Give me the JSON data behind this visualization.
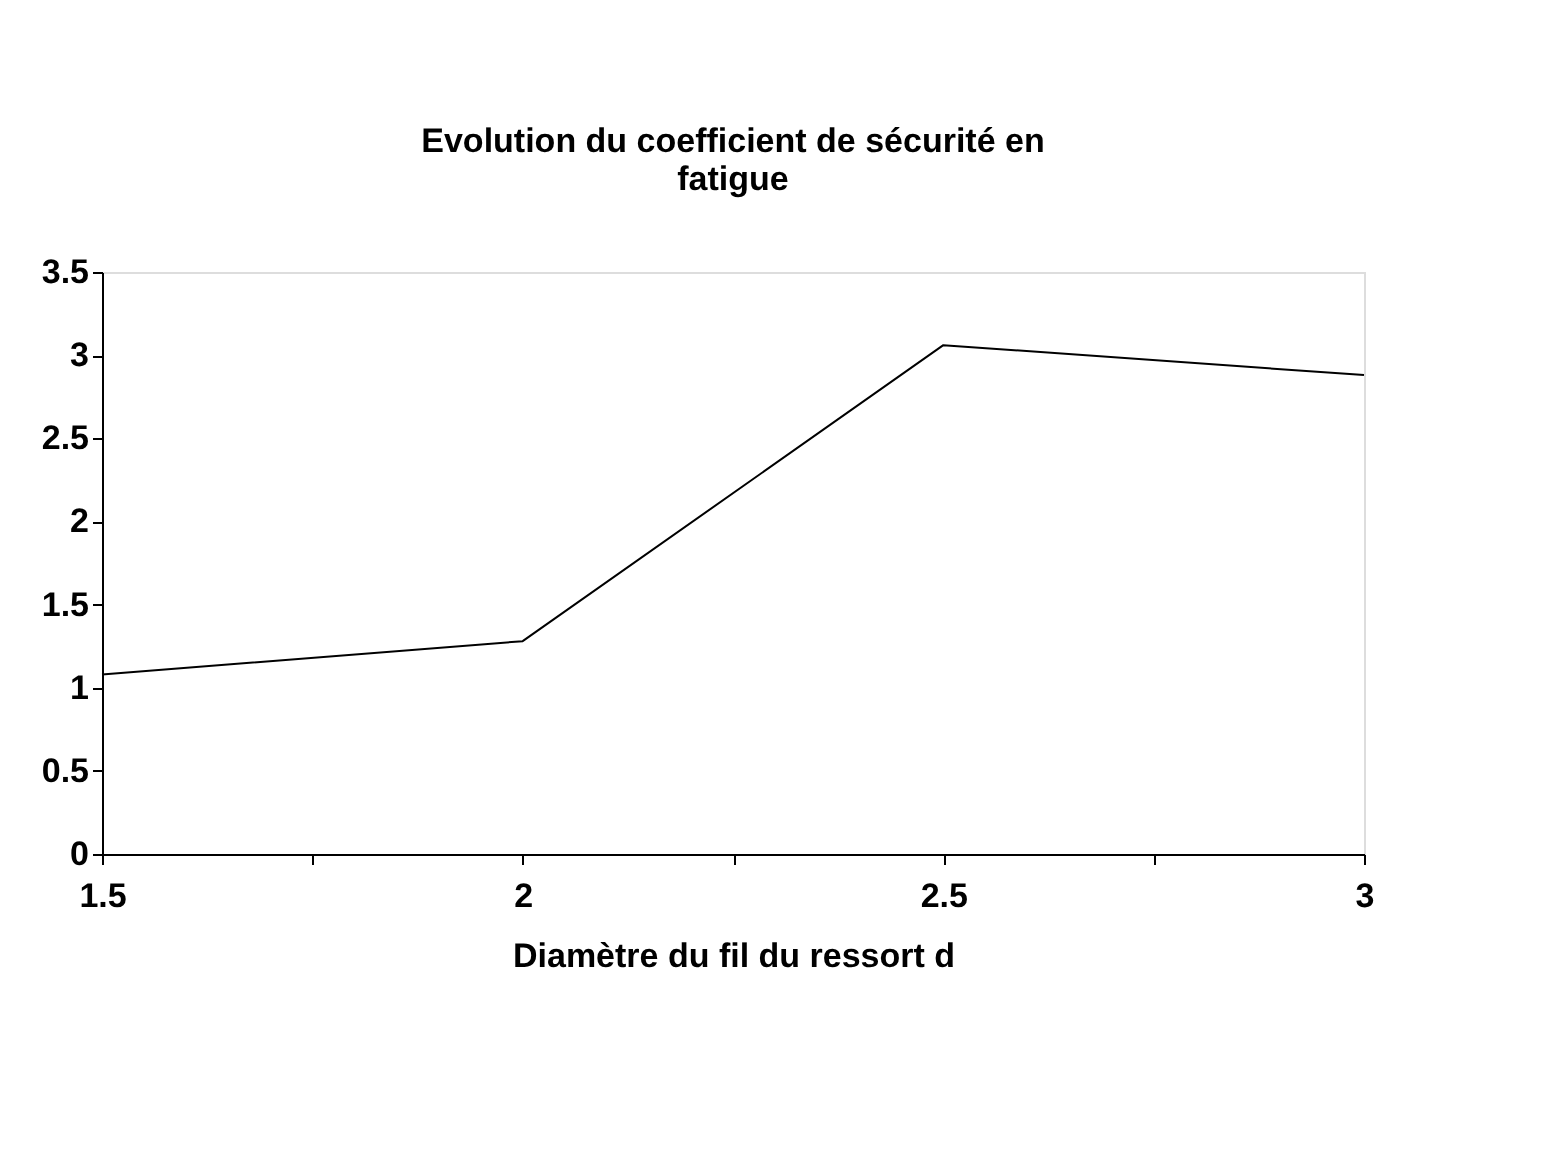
{
  "chart_data": {
    "type": "line",
    "title": [
      "Evolution du coefficient de sécurité en",
      "fatigue"
    ],
    "xlabel": "Diamètre du fil du ressort d",
    "x": [
      1.5,
      2,
      2.5,
      3
    ],
    "series": [
      {
        "color": "#000000",
        "values": [
          1.08,
          1.28,
          3.06,
          2.88
        ]
      }
    ],
    "xlim": [
      1.5,
      3
    ],
    "xticks": [
      1.5,
      {
        "value": 1.75,
        "label": null
      },
      2,
      {
        "value": 2.25,
        "label": null
      },
      2.5,
      {
        "value": 2.75,
        "label": null
      },
      3
    ],
    "ylim": [
      0,
      3.5
    ],
    "yticks": [
      0,
      0.5,
      1,
      1.5,
      2,
      2.5,
      3,
      3.5
    ],
    "grid": false,
    "legend": false,
    "marker": "none",
    "line_style": "solid"
  }
}
